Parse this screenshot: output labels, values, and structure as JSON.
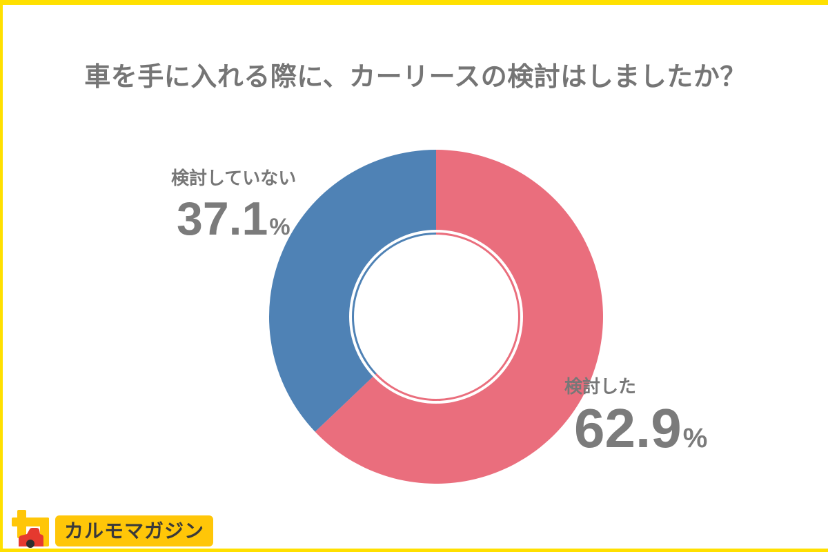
{
  "frame": {
    "border_color": "#FFE000",
    "background": "#FFFFFF"
  },
  "chart_data": {
    "type": "pie",
    "variant": "donut",
    "title": "車を手に入れる際に、カーリースの検討はしましたか？",
    "start_angle_deg": 0,
    "direction": "clockwise",
    "inner_hole_ratio": 0.52,
    "inner_ring": true,
    "legend_position": "none",
    "title_color": "#757575",
    "label_color": "#777777",
    "value_color": "#7B7B7B",
    "segments": [
      {
        "label": "検討した",
        "value": 62.9,
        "unit": "%",
        "color": "#EA6E7D"
      },
      {
        "label": "検討していない",
        "value": 37.1,
        "unit": "%",
        "color": "#4F82B5"
      }
    ]
  },
  "logo": {
    "text": "カルモマガジン",
    "badge_color": "#FFC608",
    "text_color": "#3A3A3A",
    "icon": "karumo-car-icon",
    "icon_colors": {
      "glyph": "#FFC608",
      "car": "#E5392F",
      "wheel": "#2E2E2E"
    }
  }
}
